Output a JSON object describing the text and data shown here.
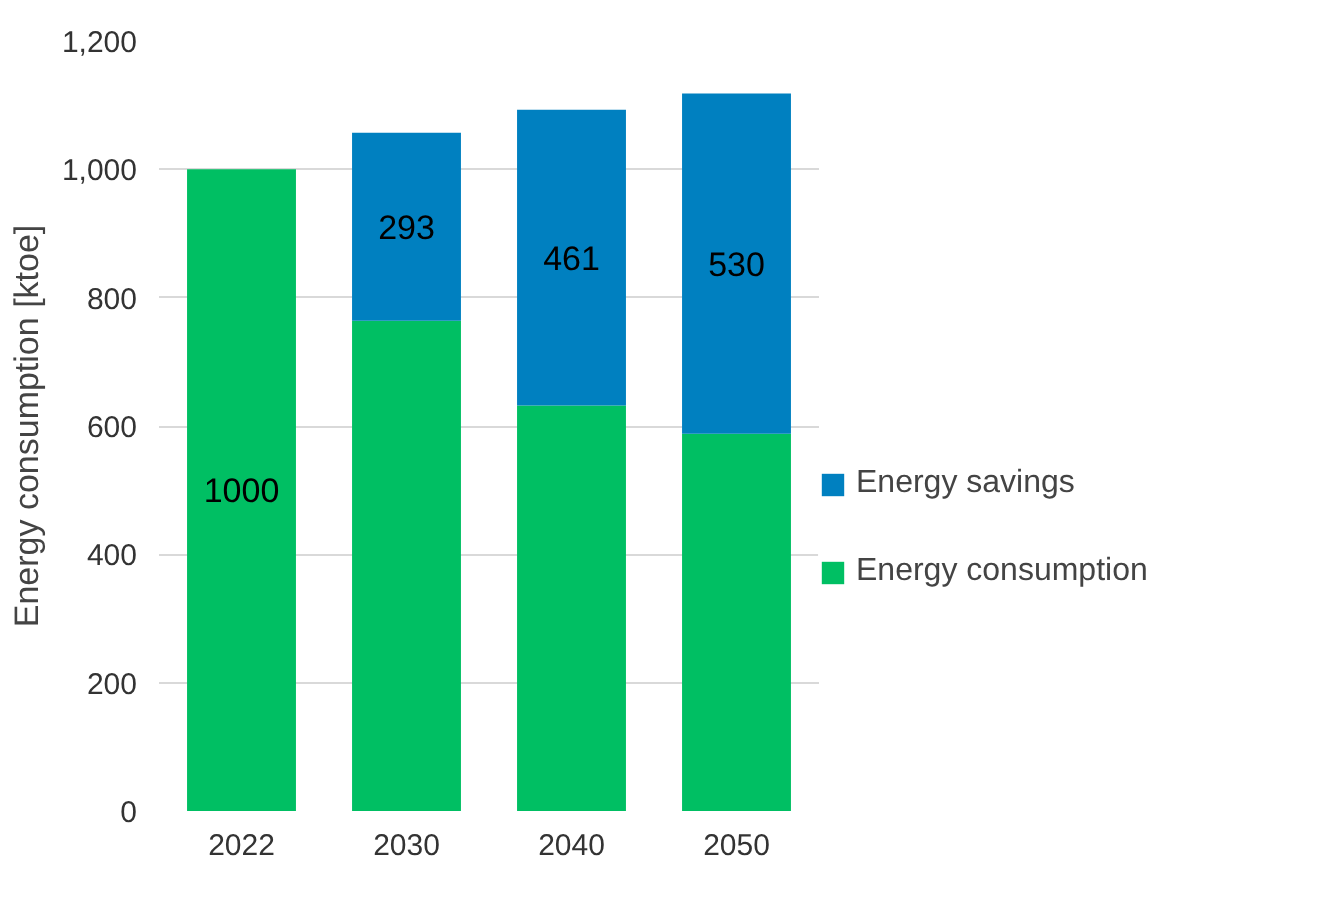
{
  "chart_data": {
    "type": "bar",
    "stacked": true,
    "ylabel": "Energy consumption [ktoe]",
    "categories": [
      "2022",
      "2030",
      "2040",
      "2050"
    ],
    "series": [
      {
        "name": "Energy consumption",
        "color": "#00bf63",
        "values": [
          1000,
          764,
          632,
          588
        ],
        "value_labels": [
          "1000",
          null,
          null,
          null
        ]
      },
      {
        "name": "Energy savings",
        "color": "#0080c0",
        "values": [
          null,
          293,
          461,
          530
        ],
        "value_labels": [
          null,
          "293",
          "461",
          "530"
        ]
      }
    ],
    "ylim": [
      0,
      1200
    ],
    "yticks": [
      0,
      {
        "value": 200,
        "label": "200"
      },
      {
        "value": 400,
        "label": "400"
      },
      {
        "value": 600,
        "label": "600"
      },
      {
        "value": 800,
        "label": "800"
      },
      {
        "value": 1000,
        "label": "1,000"
      },
      {
        "value": 1200,
        "label": "1,200"
      }
    ],
    "grid": "y",
    "legend": "right"
  }
}
